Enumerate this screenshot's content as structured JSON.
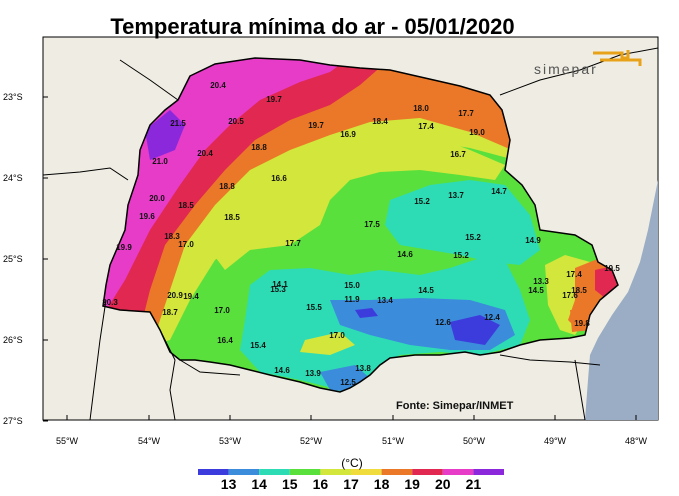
{
  "title": "Temperatura mínima do ar - 05/01/2020",
  "brand": "simepar",
  "source": "Fonte: Simepar/INMET",
  "unit": "(°C)",
  "colors": {
    "land": "#efede3",
    "ocean": "#9aadc4",
    "border": "#000000",
    "scale": [
      "#3c3cdc",
      "#3c8cdc",
      "#2ddcb4",
      "#5ae03c",
      "#d2e63c",
      "#f0dc3c",
      "#eb7828",
      "#e02850",
      "#e63cc8",
      "#8c28dc"
    ]
  },
  "lat_labels": [
    "23°S",
    "24°S",
    "25°S",
    "26°S",
    "27°S"
  ],
  "lon_labels": [
    "55°W",
    "54°W",
    "53°W",
    "52°W",
    "51°W",
    "50°W",
    "49°W",
    "48°W"
  ],
  "legend_ticks": [
    "13",
    "14",
    "15",
    "16",
    "17",
    "18",
    "19",
    "20",
    "21"
  ],
  "stations": [
    {
      "v": "20.4"
    },
    {
      "v": "19.7"
    },
    {
      "v": "21.5"
    },
    {
      "v": "20.5"
    },
    {
      "v": "19.7"
    },
    {
      "v": "18.4"
    },
    {
      "v": "18.0"
    },
    {
      "v": "17.7"
    },
    {
      "v": "17.4"
    },
    {
      "v": "19.0"
    },
    {
      "v": "16.9"
    },
    {
      "v": "21.0"
    },
    {
      "v": "20.4"
    },
    {
      "v": "18.8"
    },
    {
      "v": "16.7"
    },
    {
      "v": "16.6"
    },
    {
      "v": "18.8"
    },
    {
      "v": "14.7"
    },
    {
      "v": "20.0"
    },
    {
      "v": "18.5"
    },
    {
      "v": "15.2"
    },
    {
      "v": "13.7"
    },
    {
      "v": "19.6"
    },
    {
      "v": "18.5"
    },
    {
      "v": "17.5"
    },
    {
      "v": "15.2"
    },
    {
      "v": "18.3"
    },
    {
      "v": "17.0"
    },
    {
      "v": "17.7"
    },
    {
      "v": "14.9"
    },
    {
      "v": "19.9"
    },
    {
      "v": "14.6"
    },
    {
      "v": "15.2"
    },
    {
      "v": "17.4"
    },
    {
      "v": "19.5"
    },
    {
      "v": "13.3"
    },
    {
      "v": "14.1"
    },
    {
      "v": "15.0"
    },
    {
      "v": "15.3"
    },
    {
      "v": "20.9"
    },
    {
      "v": "19.4"
    },
    {
      "v": "14.5"
    },
    {
      "v": "14.5"
    },
    {
      "v": "17.6"
    },
    {
      "v": "18.5"
    },
    {
      "v": "20.3"
    },
    {
      "v": "11.9"
    },
    {
      "v": "13.4"
    },
    {
      "v": "15.5"
    },
    {
      "v": "18.7"
    },
    {
      "v": "17.0"
    },
    {
      "v": "12.4"
    },
    {
      "v": "12.6"
    },
    {
      "v": "19.8"
    },
    {
      "v": "17.0"
    },
    {
      "v": "16.4"
    },
    {
      "v": "15.4"
    },
    {
      "v": "14.6"
    },
    {
      "v": "13.9"
    },
    {
      "v": "13.8"
    },
    {
      "v": "12.5"
    }
  ]
}
